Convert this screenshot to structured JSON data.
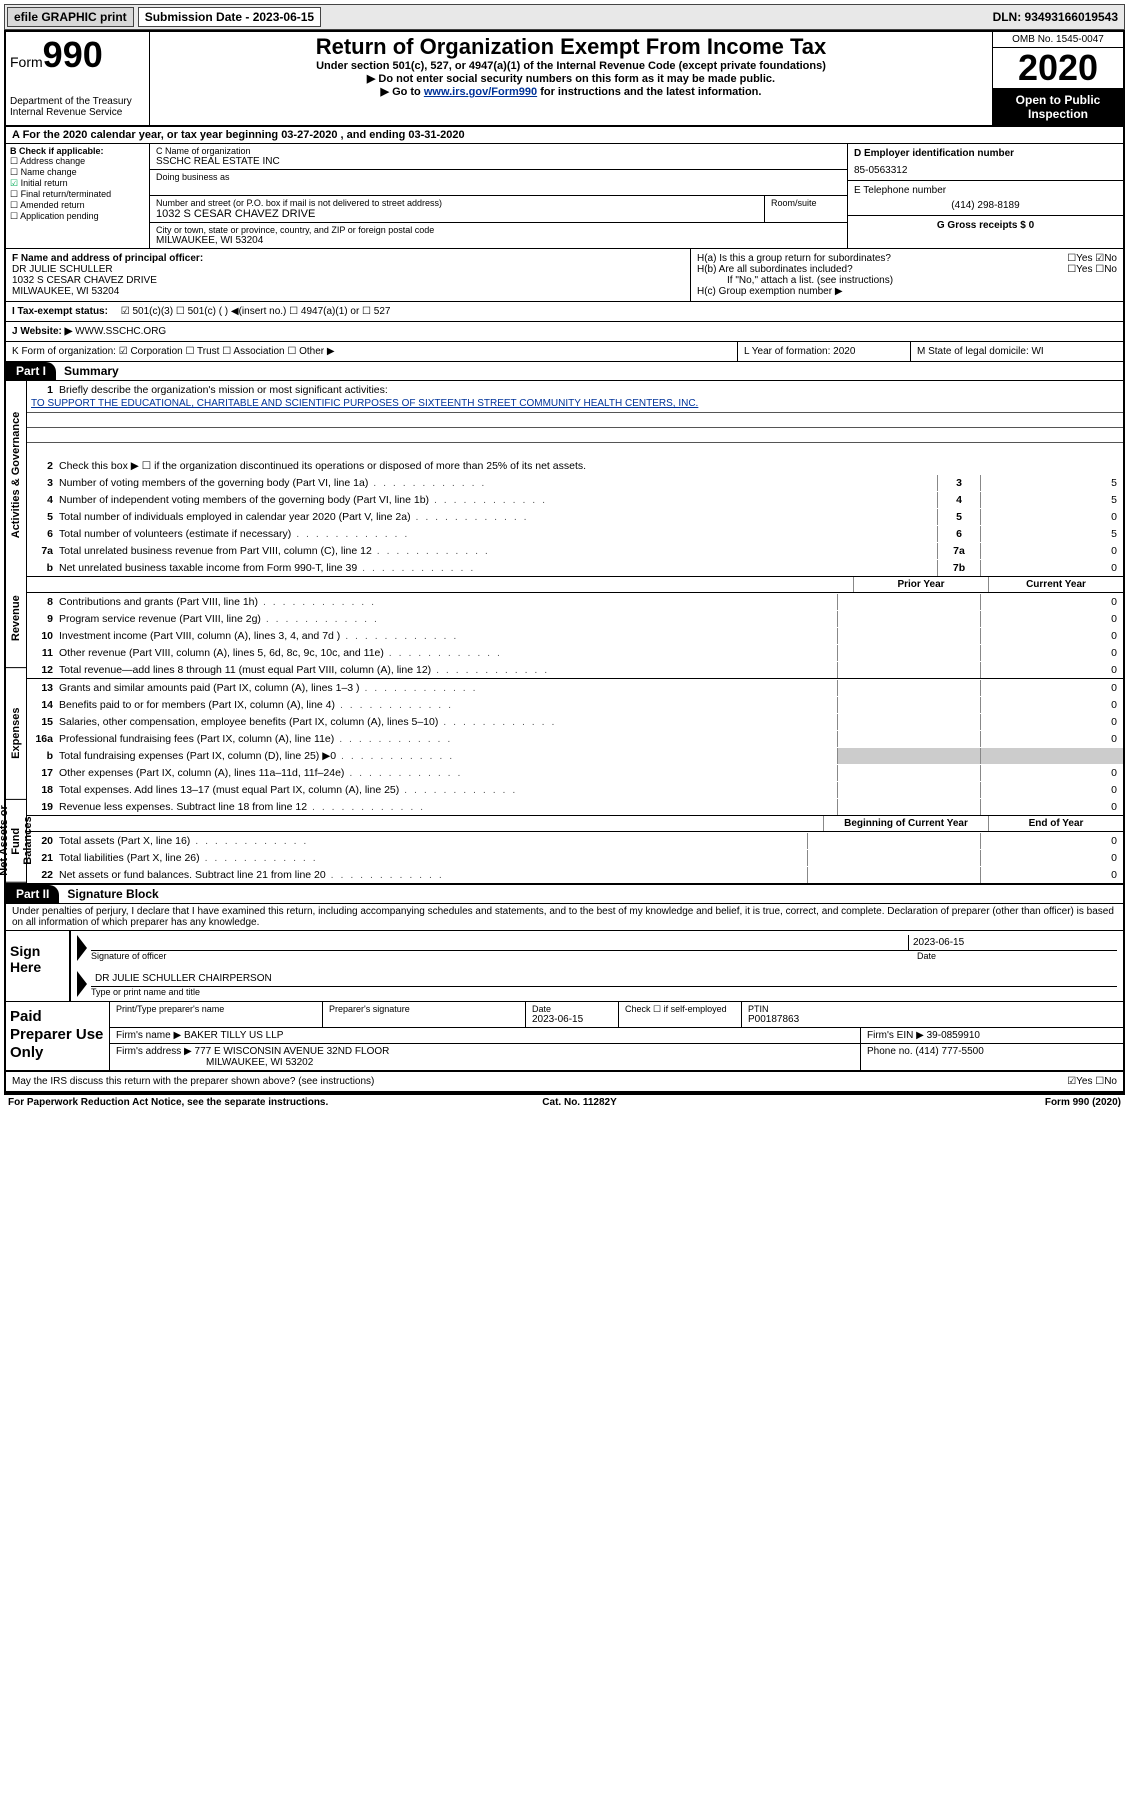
{
  "topbar": {
    "efile": "efile GRAPHIC print",
    "sub_label": "Submission Date - 2023-06-15",
    "dln": "DLN: 93493166019543"
  },
  "header": {
    "form_word": "Form",
    "form_num": "990",
    "dept": "Department of the Treasury\nInternal Revenue Service",
    "title": "Return of Organization Exempt From Income Tax",
    "subtitle": "Under section 501(c), 527, or 4947(a)(1) of the Internal Revenue Code (except private foundations)",
    "inst1": "Do not enter social security numbers on this form as it may be made public.",
    "inst2_a": "Go to ",
    "inst2_link": "www.irs.gov/Form990",
    "inst2_b": " for instructions and the latest information.",
    "omb": "OMB No. 1545-0047",
    "year": "2020",
    "open": "Open to Public Inspection"
  },
  "rowA": "A   For the 2020 calendar year, or tax year beginning 03-27-2020    , and ending 03-31-2020",
  "boxB": {
    "label": "B Check if applicable:",
    "items": [
      "Address change",
      "Name change",
      "Initial return",
      "Final return/terminated",
      "Amended return",
      "Application pending"
    ],
    "checked_idx": 2
  },
  "boxC": {
    "label_name": "C Name of organization",
    "org": "SSCHC REAL ESTATE INC",
    "dba_label": "Doing business as",
    "addr_label": "Number and street (or P.O. box if mail is not delivered to street address)",
    "addr": "1032 S CESAR CHAVEZ DRIVE",
    "room_label": "Room/suite",
    "city_label": "City or town, state or province, country, and ZIP or foreign postal code",
    "city": "MILWAUKEE, WI  53204"
  },
  "boxD": {
    "label": "D Employer identification number",
    "val": "85-0563312"
  },
  "boxE": {
    "label": "E Telephone number",
    "val": "(414) 298-8189"
  },
  "boxG": {
    "label": "G Gross receipts $ 0"
  },
  "boxF": {
    "label": "F  Name and address of principal officer:",
    "name": "DR JULIE SCHULLER",
    "addr1": "1032 S CESAR CHAVEZ DRIVE",
    "addr2": "MILWAUKEE, WI  53204"
  },
  "boxH": {
    "a": "H(a)  Is this a group return for subordinates?",
    "a_yn": "☐Yes  ☑No",
    "b": "H(b)  Are all subordinates included?",
    "b_yn": "☐Yes  ☐No",
    "note": "If \"No,\" attach a list. (see instructions)",
    "c": "H(c)  Group exemption number ▶"
  },
  "rowI": {
    "label": "I     Tax-exempt status:",
    "opts": "☑ 501(c)(3)     ☐  501(c) (  ) ◀(insert no.)     ☐  4947(a)(1) or   ☐  527"
  },
  "rowJ": {
    "label": "J     Website: ▶",
    "val": "  WWW.SSCHC.ORG"
  },
  "rowK": {
    "label": "K Form of organization:  ☑ Corporation  ☐ Trust  ☐ Association  ☐ Other ▶",
    "L": "L Year of formation: 2020",
    "M": "M State of legal domicile: WI"
  },
  "partI": {
    "tab": "Part I",
    "title": "Summary"
  },
  "vlabels": [
    "Activities & Governance",
    "Revenue",
    "Expenses",
    "Net Assets or Fund Balances"
  ],
  "gov": {
    "l1": "Briefly describe the organization's mission or most significant activities:",
    "mission": "TO SUPPORT THE EDUCATIONAL, CHARITABLE AND SCIENTIFIC PURPOSES OF SIXTEENTH STREET COMMUNITY HEALTH CENTERS, INC.",
    "l2": "Check this box ▶ ☐  if the organization discontinued its operations or disposed of more than 25% of its net assets.",
    "rows": [
      {
        "n": "3",
        "t": "Number of voting members of the governing body (Part VI, line 1a)",
        "c": "3",
        "v": "5"
      },
      {
        "n": "4",
        "t": "Number of independent voting members of the governing body (Part VI, line 1b)",
        "c": "4",
        "v": "5"
      },
      {
        "n": "5",
        "t": "Total number of individuals employed in calendar year 2020 (Part V, line 2a)",
        "c": "5",
        "v": "0"
      },
      {
        "n": "6",
        "t": "Total number of volunteers (estimate if necessary)",
        "c": "6",
        "v": "5"
      },
      {
        "n": "7a",
        "t": "Total unrelated business revenue from Part VIII, column (C), line 12",
        "c": "7a",
        "v": "0"
      },
      {
        "n": "b",
        "t": "Net unrelated business taxable income from Form 990-T, line 39",
        "c": "7b",
        "v": "0"
      }
    ]
  },
  "cols_py_cy": {
    "prior": "Prior Year",
    "curr": "Current Year"
  },
  "rev": [
    {
      "n": "8",
      "t": "Contributions and grants (Part VIII, line 1h)",
      "a": "",
      "b": "0"
    },
    {
      "n": "9",
      "t": "Program service revenue (Part VIII, line 2g)",
      "a": "",
      "b": "0"
    },
    {
      "n": "10",
      "t": "Investment income (Part VIII, column (A), lines 3, 4, and 7d )",
      "a": "",
      "b": "0"
    },
    {
      "n": "11",
      "t": "Other revenue (Part VIII, column (A), lines 5, 6d, 8c, 9c, 10c, and 11e)",
      "a": "",
      "b": "0"
    },
    {
      "n": "12",
      "t": "Total revenue—add lines 8 through 11 (must equal Part VIII, column (A), line 12)",
      "a": "",
      "b": "0"
    }
  ],
  "exp": [
    {
      "n": "13",
      "t": "Grants and similar amounts paid (Part IX, column (A), lines 1–3 )",
      "a": "",
      "b": "0"
    },
    {
      "n": "14",
      "t": "Benefits paid to or for members (Part IX, column (A), line 4)",
      "a": "",
      "b": "0"
    },
    {
      "n": "15",
      "t": "Salaries, other compensation, employee benefits (Part IX, column (A), lines 5–10)",
      "a": "",
      "b": "0"
    },
    {
      "n": "16a",
      "t": "Professional fundraising fees (Part IX, column (A), line 11e)",
      "a": "",
      "b": "0"
    },
    {
      "n": "b",
      "t": "Total fundraising expenses (Part IX, column (D), line 25) ▶0",
      "a": "shade",
      "b": "shade"
    },
    {
      "n": "17",
      "t": "Other expenses (Part IX, column (A), lines 11a–11d, 11f–24e)",
      "a": "",
      "b": "0"
    },
    {
      "n": "18",
      "t": "Total expenses. Add lines 13–17 (must equal Part IX, column (A), line 25)",
      "a": "",
      "b": "0"
    },
    {
      "n": "19",
      "t": "Revenue less expenses. Subtract line 18 from line 12",
      "a": "",
      "b": "0"
    }
  ],
  "cols_boy_eoy": {
    "boy": "Beginning of Current Year",
    "eoy": "End of Year"
  },
  "net": [
    {
      "n": "20",
      "t": "Total assets (Part X, line 16)",
      "a": "",
      "b": "0"
    },
    {
      "n": "21",
      "t": "Total liabilities (Part X, line 26)",
      "a": "",
      "b": "0"
    },
    {
      "n": "22",
      "t": "Net assets or fund balances. Subtract line 21 from line 20",
      "a": "",
      "b": "0"
    }
  ],
  "partII": {
    "tab": "Part II",
    "title": "Signature Block"
  },
  "perjury": "Under penalties of perjury, I declare that I have examined this return, including accompanying schedules and statements, and to the best of my knowledge and belief, it is true, correct, and complete. Declaration of preparer (other than officer) is based on all information of which preparer has any knowledge.",
  "sign": {
    "left": "Sign Here",
    "sig_label": "Signature of officer",
    "date": "2023-06-15",
    "date_label": "Date",
    "name": "DR JULIE SCHULLER  CHAIRPERSON",
    "name_label": "Type or print name and title"
  },
  "paid": {
    "left": "Paid Preparer Use Only",
    "h_name": "Print/Type preparer's name",
    "h_sig": "Preparer's signature",
    "h_date": "Date",
    "date": "2023-06-15",
    "h_chk": "Check ☐ if self-employed",
    "h_ptin": "PTIN",
    "ptin": "P00187863",
    "firm_label": "Firm's name    ▶",
    "firm": "BAKER TILLY US LLP",
    "ein_label": "Firm's EIN ▶",
    "ein": "39-0859910",
    "addr_label": "Firm's address ▶",
    "addr1": "777 E WISCONSIN AVENUE 32ND FLOOR",
    "addr2": "MILWAUKEE, WI  53202",
    "phone_label": "Phone no.",
    "phone": "(414) 777-5500"
  },
  "discuss": {
    "q": "May the IRS discuss this return with the preparer shown above? (see instructions)",
    "a": "☑Yes  ☐No"
  },
  "footer": {
    "l": "For Paperwork Reduction Act Notice, see the separate instructions.",
    "m": "Cat. No. 11282Y",
    "r": "Form 990 (2020)"
  }
}
